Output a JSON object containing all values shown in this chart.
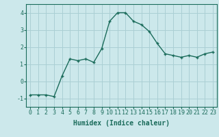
{
  "x": [
    0,
    1,
    2,
    3,
    4,
    5,
    6,
    7,
    8,
    9,
    10,
    11,
    12,
    13,
    14,
    15,
    16,
    17,
    18,
    19,
    20,
    21,
    22,
    23
  ],
  "y": [
    -0.8,
    -0.8,
    -0.8,
    -0.9,
    0.3,
    1.3,
    1.2,
    1.3,
    1.1,
    1.9,
    3.5,
    4.0,
    4.0,
    3.5,
    3.3,
    2.9,
    2.2,
    1.6,
    1.5,
    1.4,
    1.5,
    1.4,
    1.6,
    1.7
  ],
  "line_color": "#1a6b5a",
  "marker": "+",
  "bg_color": "#cce8eb",
  "grid_color": "#aacfd4",
  "xlabel": "Humidex (Indice chaleur)",
  "ylim": [
    -1.5,
    4.5
  ],
  "xlim": [
    -0.5,
    23.5
  ],
  "yticks": [
    -1,
    0,
    1,
    2,
    3,
    4
  ],
  "xticks": [
    0,
    1,
    2,
    3,
    4,
    5,
    6,
    7,
    8,
    9,
    10,
    11,
    12,
    13,
    14,
    15,
    16,
    17,
    18,
    19,
    20,
    21,
    22,
    23
  ],
  "xlabel_fontsize": 7,
  "tick_fontsize": 6,
  "line_width": 1.0,
  "marker_size": 3
}
